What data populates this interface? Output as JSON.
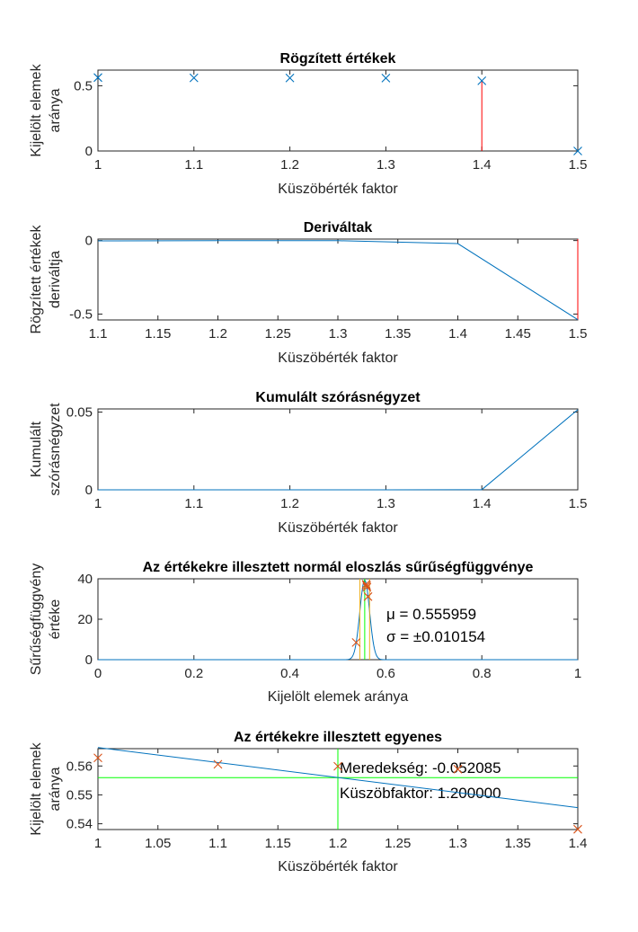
{
  "colors": {
    "blue": "#0072BD",
    "orange": "#D95319",
    "red": "#FF0000",
    "yellow": "#EDB120",
    "green": "#00FF00",
    "axis": "#262626"
  },
  "chart_data": [
    {
      "type": "scatter",
      "title": "Rögzített értékek",
      "xlabel": "Küszöbérték faktor",
      "ylabel": [
        "Kijelölt elemek",
        "aránya"
      ],
      "xlim": [
        1,
        1.5
      ],
      "ylim": [
        0,
        0.62
      ],
      "xticks": [
        1,
        1.1,
        1.2,
        1.3,
        1.4,
        1.5
      ],
      "xtick_labels": [
        "1",
        "1.1",
        "1.2",
        "1.3",
        "1.4",
        "1.5"
      ],
      "yticks": [
        0,
        0.5
      ],
      "ytick_labels": [
        "0",
        "0.5"
      ],
      "x": [
        1,
        1.1,
        1.2,
        1.3,
        1.4,
        1.5
      ],
      "y": [
        0.5628,
        0.5606,
        0.5599,
        0.5589,
        0.5381,
        0
      ],
      "marker": "x",
      "vlines": [
        {
          "x": 1.4,
          "y0": 0,
          "y1": 0.5381,
          "color": "red"
        }
      ]
    },
    {
      "type": "line",
      "title": "Deriváltak",
      "xlabel": "Küszöbérték faktor",
      "ylabel": [
        "Rögzített értékek",
        "deriváltja"
      ],
      "xlim": [
        1.1,
        1.5
      ],
      "ylim": [
        -0.54,
        0.01
      ],
      "xticks": [
        1.1,
        1.15,
        1.2,
        1.25,
        1.3,
        1.35,
        1.4,
        1.45,
        1.5
      ],
      "xtick_labels": [
        "1.1",
        "1.15",
        "1.2",
        "1.25",
        "1.3",
        "1.35",
        "1.4",
        "1.45",
        "1.5"
      ],
      "yticks": [
        0,
        -0.5
      ],
      "ytick_labels": [
        "0",
        "-0.5"
      ],
      "x": [
        1.1,
        1.2,
        1.3,
        1.4,
        1.5
      ],
      "y": [
        -0.0022,
        -0.0007,
        -0.001,
        -0.0208,
        -0.5381
      ],
      "vlines": [
        {
          "x": 1.5,
          "y0": -0.5381,
          "y1": 0.01,
          "color": "red"
        }
      ]
    },
    {
      "type": "line",
      "title": "Kumulált szórásnégyzet",
      "xlabel": "Küszöbérték faktor",
      "ylabel": [
        "Kumulált",
        "szórásnégyzet"
      ],
      "xlim": [
        1,
        1.5
      ],
      "ylim": [
        0,
        0.052
      ],
      "xticks": [
        1,
        1.1,
        1.2,
        1.3,
        1.4,
        1.5
      ],
      "xtick_labels": [
        "1",
        "1.1",
        "1.2",
        "1.3",
        "1.4",
        "1.5"
      ],
      "yticks": [
        0,
        0.05
      ],
      "ytick_labels": [
        "0",
        "0.05"
      ],
      "x": [
        1,
        1.1,
        1.2,
        1.3,
        1.4,
        1.5
      ],
      "y": [
        2e-07,
        1.5e-06,
        1.8e-06,
        2.7e-06,
        0.000103,
        0.0515
      ]
    },
    {
      "type": "line",
      "title": "Az értékekre illesztett normál eloszlás sűrűségfüggvénye",
      "xlabel": "Kijelölt elemek aránya",
      "ylabel": [
        "Sűrűségfüggvény",
        "értéke"
      ],
      "xlim": [
        0,
        1
      ],
      "ylim": [
        0,
        40
      ],
      "xticks": [
        0,
        0.2,
        0.4,
        0.6,
        0.8,
        1
      ],
      "xtick_labels": [
        "0",
        "0.2",
        "0.4",
        "0.6",
        "0.8",
        "1"
      ],
      "yticks": [
        0,
        20,
        40
      ],
      "ytick_labels": [
        "0",
        "20",
        "40"
      ],
      "mu": 0.555959,
      "sigma": 0.010154,
      "points": {
        "x": [
          0.5381,
          0.5589,
          0.5599,
          0.5606,
          0.5628
        ],
        "y": [
          8.5,
          37.3,
          36.6,
          35.8,
          31.2
        ]
      },
      "vlines_yellow": [
        0.5458,
        0.5661
      ],
      "vline_green": 0.555959,
      "annotations": [
        "μ = 0.555959",
        "σ = ±0.010154"
      ]
    },
    {
      "type": "scatter",
      "title": "Az értékekre illesztett egyenes",
      "xlabel": "Küszöbérték faktor",
      "ylabel": [
        "Kijelölt elemek",
        "aránya"
      ],
      "xlim": [
        1,
        1.4
      ],
      "ylim": [
        0.538,
        0.566
      ],
      "xticks": [
        1,
        1.05,
        1.1,
        1.15,
        1.2,
        1.25,
        1.3,
        1.35,
        1.4
      ],
      "xtick_labels": [
        "1",
        "1.05",
        "1.1",
        "1.15",
        "1.2",
        "1.25",
        "1.3",
        "1.35",
        "1.4"
      ],
      "yticks": [
        0.54,
        0.55,
        0.56
      ],
      "ytick_labels": [
        "0.54",
        "0.55",
        "0.56"
      ],
      "x": [
        1,
        1.1,
        1.2,
        1.3,
        1.4
      ],
      "y": [
        0.5628,
        0.5606,
        0.5599,
        0.5589,
        0.5381
      ],
      "fit": {
        "x": [
          1,
          1.4
        ],
        "y": [
          0.5664,
          0.5456
        ]
      },
      "hline": 0.555959,
      "vline": 1.2,
      "annotations": [
        "Meredekség: -0.052085",
        "Küszöbfaktor: 1.200000"
      ]
    }
  ]
}
